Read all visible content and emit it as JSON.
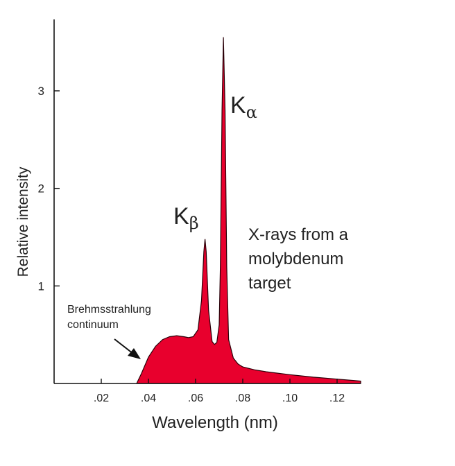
{
  "chart_data": {
    "type": "area",
    "title": "",
    "xlabel": "Wavelength (nm)",
    "ylabel": "Relative intensity",
    "xlim": [
      0.0,
      0.13
    ],
    "ylim": [
      0,
      3.6
    ],
    "grid": false,
    "x_ticks": [
      0.02,
      0.04,
      0.06,
      0.08,
      0.1,
      0.12
    ],
    "x_tick_labels": [
      ".02",
      ".04",
      ".06",
      ".08",
      ".10",
      ".12"
    ],
    "y_ticks": [
      1,
      2,
      3
    ],
    "y_tick_labels": [
      "1",
      "2",
      "3"
    ],
    "fill_color": "#e8002d",
    "series": [
      {
        "x": [
          0.035,
          0.037,
          0.04,
          0.043,
          0.046,
          0.049,
          0.052,
          0.055,
          0.057,
          0.059,
          0.061,
          0.0625,
          0.0635,
          0.064,
          0.0645,
          0.0655,
          0.067,
          0.068,
          0.069,
          0.07,
          0.0705,
          0.0712,
          0.0718,
          0.0725,
          0.0732,
          0.074,
          0.076,
          0.078,
          0.08,
          0.085,
          0.09,
          0.1,
          0.11,
          0.12,
          0.13
        ],
        "y": [
          0.0,
          0.1,
          0.27,
          0.38,
          0.45,
          0.48,
          0.49,
          0.48,
          0.47,
          0.48,
          0.55,
          0.85,
          1.35,
          1.48,
          1.35,
          0.75,
          0.43,
          0.4,
          0.42,
          0.6,
          1.2,
          2.8,
          3.55,
          2.8,
          1.2,
          0.45,
          0.26,
          0.2,
          0.17,
          0.14,
          0.12,
          0.09,
          0.065,
          0.045,
          0.025
        ]
      }
    ],
    "annotations": [
      {
        "text": "K",
        "subscript": "α",
        "target": "Kα peak"
      },
      {
        "text": "K",
        "subscript": "β",
        "target": "Kβ peak"
      },
      {
        "lines": [
          "X-rays from a",
          "molybdenum",
          "target"
        ]
      },
      {
        "lines": [
          "Brehmsstrahlung",
          "continuum"
        ],
        "arrow": true
      }
    ]
  }
}
